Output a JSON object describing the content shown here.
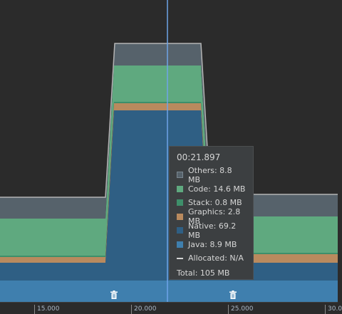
{
  "tooltip": {
    "time": "00:21.897",
    "rows": [
      {
        "label": "Others: 8.8 MB",
        "color": "#56626b"
      },
      {
        "label": "Code: 14.6 MB",
        "color": "#5fa97f"
      },
      {
        "label": "Stack: 0.8 MB",
        "color": "#3e8f6a"
      },
      {
        "label": "Graphics: 2.8 MB",
        "color": "#b98a5e"
      },
      {
        "label": "Native: 69.2 MB",
        "color": "#2f5f84"
      },
      {
        "label": "Java: 8.9 MB",
        "color": "#3f7fae"
      }
    ],
    "allocated": "Allocated: N/A",
    "total": "Total: 105 MB"
  },
  "axis": {
    "labels": [
      "15.000",
      "20.000",
      "25.000",
      "30.0"
    ]
  },
  "colors": {
    "background": "#2b2b2b",
    "cursor": "#6ea4e8",
    "outline": "#b4b4b4"
  },
  "icons": [
    "trash-icon",
    "trash-icon"
  ]
}
